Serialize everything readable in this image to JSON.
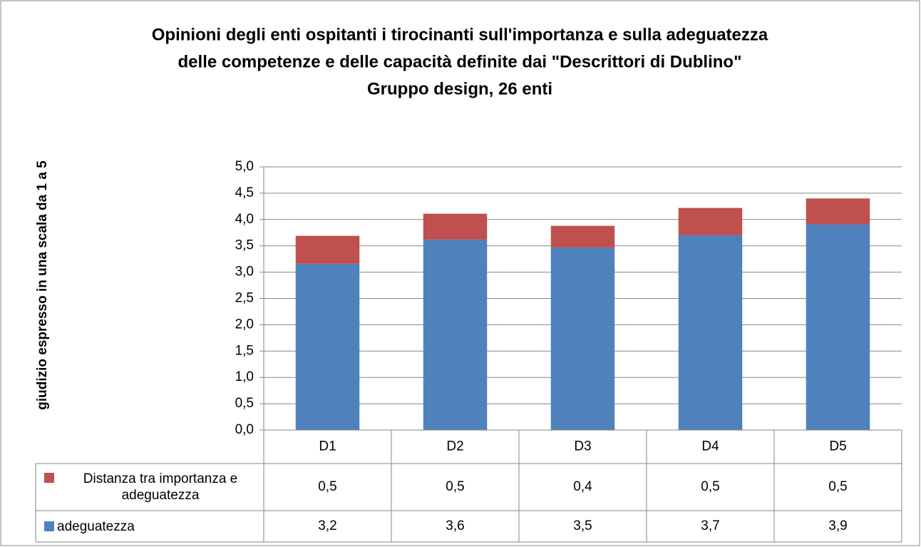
{
  "chart_data": {
    "type": "stacked_bar",
    "title": [
      "Opinioni degli enti ospitanti i tirocinanti sull'importanza e sulla adeguatezza",
      "delle competenze e delle capacità definite dai \"Descrittori di Dublino\""
    ],
    "subtitle": "Gruppo design, 26 enti",
    "y_label": "giudizio espresso in una scala da 1 a 5",
    "categories": [
      "D1",
      "D2",
      "D3",
      "D4",
      "D5"
    ],
    "series": [
      {
        "name": "adeguatezza",
        "color": "#4f81bd",
        "values": [
          3.16,
          3.62,
          3.47,
          3.7,
          3.91
        ],
        "value_labels": [
          "3,2",
          "3,6",
          "3,5",
          "3,7",
          "3,9"
        ]
      },
      {
        "name": "Distanza tra importanza e adeguatezza",
        "color": "#c0504d",
        "values": [
          0.53,
          0.49,
          0.41,
          0.52,
          0.49
        ],
        "value_labels": [
          "0,5",
          "0,5",
          "0,4",
          "0,5",
          "0,5"
        ]
      }
    ],
    "ylim": [
      0,
      5
    ],
    "yticks": [
      {
        "value": 0,
        "label": "0,0"
      },
      {
        "value": 0.5,
        "label": "0,5"
      },
      {
        "value": 1,
        "label": "1,0"
      },
      {
        "value": 1.5,
        "label": "1,5"
      },
      {
        "value": 2,
        "label": "2,0"
      },
      {
        "value": 2.5,
        "label": "2,5"
      },
      {
        "value": 3,
        "label": "3,0"
      },
      {
        "value": 3.5,
        "label": "3,5"
      },
      {
        "value": 4,
        "label": "4,0"
      },
      {
        "value": 4.5,
        "label": "4,5"
      },
      {
        "value": 5,
        "label": "5,0"
      }
    ],
    "grid": true,
    "data_table": true
  }
}
